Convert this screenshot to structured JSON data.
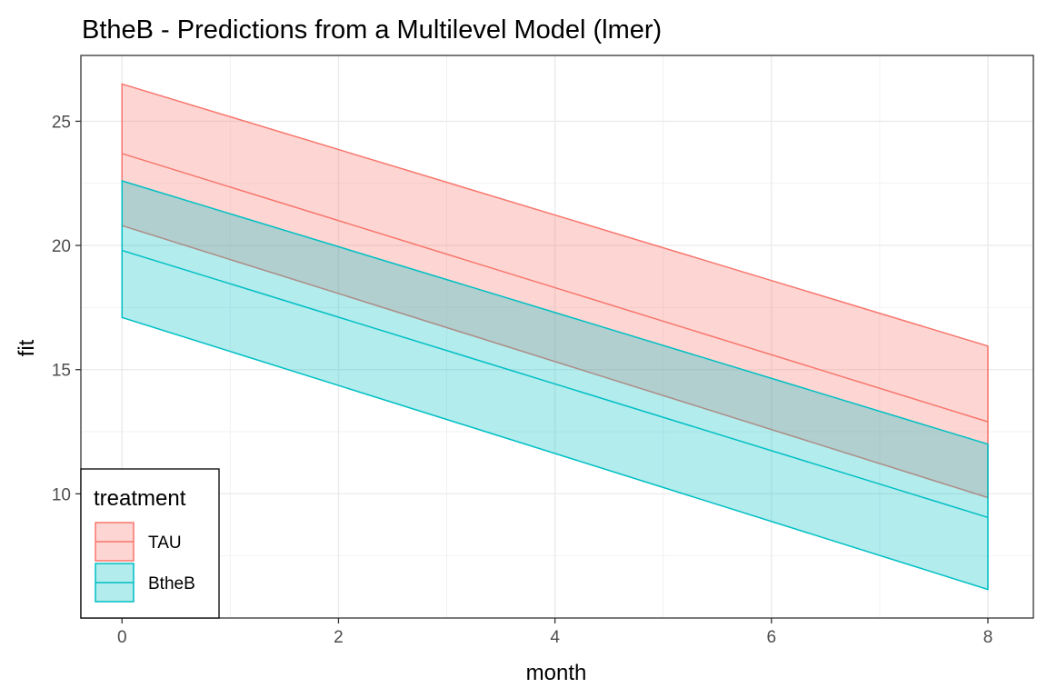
{
  "chart_data": {
    "type": "area",
    "title": "BtheB - Predictions from a Multilevel Model (lmer)",
    "xlabel": "month",
    "ylabel": "fit",
    "xlim": [
      -0.38,
      8.42
    ],
    "ylim": [
      5.0,
      27.65
    ],
    "x_ticks": [
      0,
      2,
      4,
      6,
      8
    ],
    "x_tick_labels": [
      "0",
      "2",
      "4",
      "6",
      "8"
    ],
    "y_ticks": [
      10,
      15,
      20,
      25
    ],
    "y_tick_labels": [
      "10",
      "15",
      "20",
      "25"
    ],
    "x_minor_ticks": [
      1,
      3,
      5,
      7
    ],
    "y_minor_ticks": [
      7.5,
      12.5,
      17.5,
      22.5
    ],
    "grid": true,
    "legend": {
      "title": "treatment",
      "position": "bottom-left"
    },
    "series": [
      {
        "name": "TAU",
        "color": "#F8766D",
        "x": [
          0,
          8
        ],
        "fit": [
          23.7,
          12.9
        ],
        "lower": [
          20.8,
          9.85
        ],
        "upper": [
          26.5,
          15.95
        ]
      },
      {
        "name": "BtheB",
        "color": "#00BFC4",
        "x": [
          0,
          8
        ],
        "fit": [
          19.8,
          9.05
        ],
        "lower": [
          17.1,
          6.15
        ],
        "upper": [
          22.6,
          12.0
        ]
      }
    ]
  }
}
